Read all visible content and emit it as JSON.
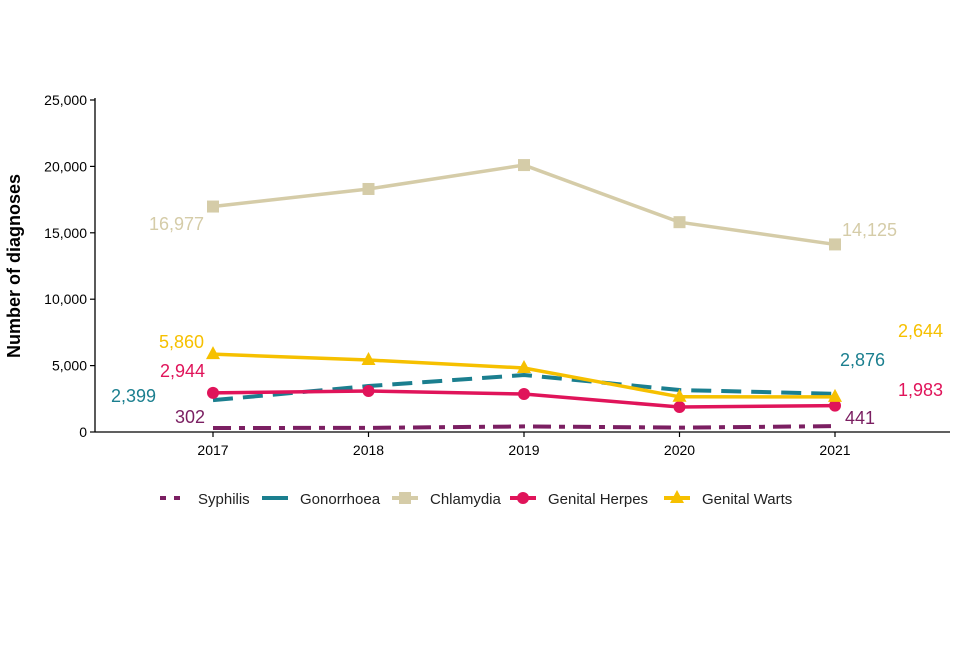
{
  "chart_data": {
    "type": "line",
    "title": "",
    "xlabel": "",
    "ylabel": "Number of diagnoses",
    "ylim": [
      0,
      25000
    ],
    "yticks": [
      0,
      5000,
      10000,
      15000,
      20000,
      25000
    ],
    "ytick_labels": [
      "0",
      "5,000",
      "10,000",
      "15,000",
      "20,000",
      "25,000"
    ],
    "x": [
      "2017",
      "2018",
      "2019",
      "2020",
      "2021"
    ],
    "grid": false,
    "legend_position": "bottom",
    "series": [
      {
        "name": "Syphilis",
        "color": "#7b1f62",
        "style": "dashdot",
        "marker": "none",
        "values": [
          302,
          310,
          420,
          330,
          441
        ],
        "first_label": "302",
        "last_label": "441"
      },
      {
        "name": "Gonorrhoea",
        "color": "#1b7f8f",
        "style": "dashed",
        "marker": "none",
        "values": [
          2399,
          3460,
          4290,
          3160,
          2876
        ],
        "first_label": "2,399",
        "last_label": "2,876"
      },
      {
        "name": "Chlamydia",
        "color": "#d5cca8",
        "style": "solid",
        "marker": "square",
        "values": [
          16977,
          18300,
          20100,
          15800,
          14125
        ],
        "first_label": "16,977",
        "last_label": "14,125"
      },
      {
        "name": "Genital Herpes",
        "color": "#e0145a",
        "style": "solid",
        "marker": "circle",
        "values": [
          2944,
          3090,
          2860,
          1880,
          1983
        ],
        "first_label": "2,944",
        "last_label": "1,983"
      },
      {
        "name": "Genital Warts",
        "color": "#f6c000",
        "style": "solid",
        "marker": "triangle",
        "values": [
          5860,
          5420,
          4820,
          2650,
          2644
        ],
        "first_label": "5,860",
        "last_label": "2,644"
      }
    ]
  }
}
